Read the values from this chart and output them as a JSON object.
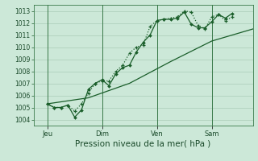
{
  "title": "",
  "xlabel": "Pression niveau de la mer( hPa )",
  "bg_color": "#cce8d8",
  "grid_color": "#aaccb8",
  "line_color": "#1a5e2a",
  "ylim": [
    1003.5,
    1013.5
  ],
  "yticks": [
    1004,
    1005,
    1006,
    1007,
    1008,
    1009,
    1010,
    1011,
    1012,
    1013
  ],
  "day_labels": [
    "Jeu",
    "Dim",
    "Ven",
    "Sam"
  ],
  "day_positions": [
    12,
    60,
    108,
    156
  ],
  "total_hours": 192,
  "xlim": [
    0,
    192
  ],
  "series1_x": [
    12,
    18,
    24,
    30,
    36,
    42,
    48,
    54,
    60,
    66,
    72,
    78,
    84,
    90,
    96,
    102,
    108,
    114,
    120,
    126,
    132,
    138,
    144,
    150,
    156,
    162,
    168,
    174
  ],
  "series1_y": [
    1005.3,
    1005.0,
    1005.0,
    1005.2,
    1004.7,
    1005.3,
    1006.2,
    1007.0,
    1007.2,
    1007.2,
    1008.0,
    1008.5,
    1009.5,
    1010.0,
    1010.2,
    1011.7,
    1012.2,
    1012.3,
    1012.4,
    1012.5,
    1013.0,
    1012.9,
    1011.8,
    1011.5,
    1012.5,
    1012.7,
    1012.2,
    1012.5
  ],
  "series2_x": [
    12,
    18,
    24,
    30,
    36,
    42,
    48,
    54,
    60,
    66,
    72,
    78,
    84,
    90,
    96,
    102,
    108,
    114,
    120,
    126,
    132,
    138,
    144,
    150,
    156,
    162,
    168,
    174
  ],
  "series2_y": [
    1005.3,
    1005.0,
    1005.0,
    1005.2,
    1004.2,
    1004.8,
    1006.5,
    1007.0,
    1007.3,
    1006.8,
    1007.8,
    1008.3,
    1008.5,
    1009.6,
    1010.4,
    1011.0,
    1012.2,
    1012.3,
    1012.3,
    1012.4,
    1012.9,
    1011.9,
    1011.6,
    1011.6,
    1012.1,
    1012.7,
    1012.4,
    1012.8
  ],
  "series3_x": [
    12,
    48,
    84,
    120,
    156,
    192
  ],
  "series3_y": [
    1005.3,
    1005.8,
    1007.0,
    1008.8,
    1010.5,
    1011.5
  ]
}
